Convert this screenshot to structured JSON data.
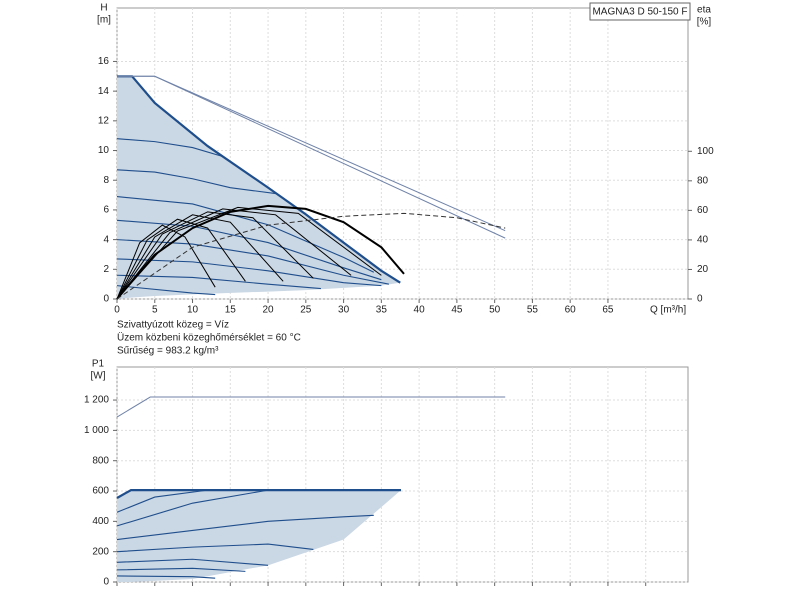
{
  "chart_data": [
    {
      "type": "line",
      "title": "MAGNA3 D 50-150 F",
      "ylabel": [
        "H",
        "[m]"
      ],
      "y2label": [
        "eta",
        "[%]"
      ],
      "xlabel": "Q [m³/h]",
      "annotations": [
        "Szivattyúzott közeg = Víz",
        "Üzem közbeni közeghőmérséklet = 60 °C",
        "Sűrűség = 983.2 kg/m³"
      ],
      "xlim": [
        0,
        75.6
      ],
      "ylim": [
        0,
        19.6
      ],
      "y2lim": [
        0,
        197
      ],
      "xticks": [
        0,
        5,
        10,
        15,
        20,
        25,
        30,
        35,
        40,
        45,
        50,
        55,
        60,
        65
      ],
      "yticks": [
        0,
        2,
        4,
        6,
        8,
        10,
        12,
        14,
        16
      ],
      "y2ticks": [
        0,
        20,
        40,
        60,
        80,
        100
      ],
      "grid": true,
      "show_xtick_labels": true,
      "series": [
        {
          "kind": "area",
          "fill": "#cad7e4",
          "color": "#1f4e8c",
          "width": 2.2,
          "x": [
            0,
            2,
            5,
            12,
            20,
            25,
            30,
            35,
            37.5
          ],
          "values": [
            15,
            15,
            13.2,
            10.3,
            7.5,
            5.7,
            3.8,
            1.9,
            1.1
          ],
          "lower": [
            0,
            0.1,
            0.2,
            0.35,
            0.5,
            0.6,
            0.75,
            0.9,
            1.1
          ]
        },
        {
          "kind": "line",
          "color": "#1f4e8c",
          "width": 1.1,
          "x": [
            0,
            5,
            10,
            14
          ],
          "values": [
            10.8,
            10.6,
            10.2,
            9.6
          ]
        },
        {
          "kind": "line",
          "color": "#1f4e8c",
          "width": 1.1,
          "x": [
            0,
            5,
            10,
            15,
            21
          ],
          "values": [
            8.7,
            8.55,
            8.1,
            7.5,
            7.1
          ]
        },
        {
          "kind": "line",
          "color": "#1f4e8c",
          "width": 1.1,
          "x": [
            0,
            10,
            20,
            30,
            34
          ],
          "values": [
            6.9,
            6.4,
            5.0,
            2.8,
            1.8
          ]
        },
        {
          "kind": "line",
          "color": "#1f4e8c",
          "width": 1.1,
          "x": [
            0,
            10,
            20,
            30,
            35
          ],
          "values": [
            5.3,
            4.9,
            3.8,
            2.1,
            1.3
          ]
        },
        {
          "kind": "line",
          "color": "#1f4e8c",
          "width": 1.1,
          "x": [
            0,
            10,
            20,
            30,
            36
          ],
          "values": [
            4.0,
            3.7,
            2.9,
            1.6,
            1.0
          ]
        },
        {
          "kind": "line",
          "color": "#1f4e8c",
          "width": 1.1,
          "x": [
            0,
            10,
            20,
            30,
            35
          ],
          "values": [
            2.7,
            2.5,
            1.9,
            1.1,
            0.9
          ]
        },
        {
          "kind": "line",
          "color": "#1f4e8c",
          "width": 1.1,
          "x": [
            0,
            10,
            20,
            27
          ],
          "values": [
            1.6,
            1.45,
            1.0,
            0.7
          ]
        },
        {
          "kind": "line",
          "color": "#1f4e8c",
          "width": 1.1,
          "x": [
            0,
            10,
            13
          ],
          "values": [
            0.9,
            0.4,
            0.3
          ]
        },
        {
          "kind": "line",
          "color": "#7083a8",
          "width": 1,
          "x": [
            0,
            5,
            51.4
          ],
          "values": [
            15,
            15,
            4.6
          ]
        },
        {
          "kind": "line",
          "color": "#7083a8",
          "width": 1,
          "x": [
            0,
            5,
            51.4
          ],
          "values": [
            15,
            15,
            4.1
          ]
        },
        {
          "kind": "line",
          "axis": "y2",
          "color": "#000000",
          "width": 2,
          "x": [
            0,
            5,
            10,
            15,
            20,
            25,
            30,
            35,
            38
          ],
          "values": [
            0,
            30,
            48,
            59,
            63,
            61,
            52,
            35,
            17
          ]
        },
        {
          "kind": "line",
          "axis": "y2",
          "color": "#000000",
          "width": 1,
          "x": [
            0,
            3,
            6,
            9,
            13
          ],
          "values": [
            0,
            38,
            50,
            42,
            8
          ]
        },
        {
          "kind": "line",
          "axis": "y2",
          "color": "#000000",
          "width": 1,
          "x": [
            0,
            4,
            8,
            12,
            17
          ],
          "values": [
            0,
            40,
            54,
            48,
            12
          ]
        },
        {
          "kind": "line",
          "axis": "y2",
          "color": "#000000",
          "width": 1,
          "x": [
            0,
            5,
            10,
            15,
            22
          ],
          "values": [
            0,
            42,
            57,
            52,
            12
          ]
        },
        {
          "kind": "line",
          "axis": "y2",
          "color": "#000000",
          "width": 1,
          "x": [
            0,
            6,
            12,
            18,
            26
          ],
          "values": [
            0,
            44,
            59,
            55,
            14
          ]
        },
        {
          "kind": "line",
          "axis": "y2",
          "color": "#000000",
          "width": 1,
          "x": [
            0,
            7,
            14,
            21,
            31
          ],
          "values": [
            0,
            45,
            61,
            57,
            16
          ]
        },
        {
          "kind": "line",
          "axis": "y2",
          "color": "#000000",
          "width": 1,
          "x": [
            0,
            8,
            16,
            24,
            35
          ],
          "values": [
            0,
            46,
            62,
            58,
            16
          ]
        },
        {
          "kind": "line",
          "axis": "y2",
          "color": "#333333",
          "width": 1,
          "dash": true,
          "x": [
            0,
            10,
            20,
            30,
            38,
            45,
            51.4
          ],
          "values": [
            0,
            35,
            50,
            56,
            58,
            55,
            48
          ]
        }
      ]
    },
    {
      "type": "line",
      "ylabel": [
        "P1",
        "[W]"
      ],
      "xlim": [
        0,
        75.6
      ],
      "ylim": [
        0,
        1418
      ],
      "xticks": [
        0,
        5,
        10,
        15,
        20,
        25,
        30,
        35,
        40,
        45,
        50,
        55,
        60,
        65,
        70
      ],
      "yticks": [
        0,
        200,
        400,
        600,
        800,
        {
          "value": 1000,
          "label": "1 000"
        },
        {
          "value": 1200,
          "label": "1 200"
        }
      ],
      "grid": true,
      "show_xtick_labels": false,
      "series": [
        {
          "kind": "area",
          "fill": "#cad7e4",
          "color": "#1f4e8c",
          "width": 2.2,
          "x": [
            0,
            1.85,
            10,
            20,
            30,
            37.6
          ],
          "values": [
            554,
            606,
            606,
            606,
            606,
            606
          ],
          "lower": [
            0,
            0,
            20,
            110,
            280,
            606
          ]
        },
        {
          "kind": "line",
          "color": "#1f4e8c",
          "width": 1.1,
          "x": [
            0,
            5,
            12
          ],
          "values": [
            460,
            560,
            606
          ]
        },
        {
          "kind": "line",
          "color": "#1f4e8c",
          "width": 1.1,
          "x": [
            0,
            10,
            20
          ],
          "values": [
            370,
            520,
            606
          ]
        },
        {
          "kind": "line",
          "color": "#1f4e8c",
          "width": 1.1,
          "x": [
            0,
            10,
            20,
            30,
            34
          ],
          "values": [
            280,
            340,
            400,
            430,
            440
          ]
        },
        {
          "kind": "line",
          "color": "#1f4e8c",
          "width": 1.1,
          "x": [
            0,
            10,
            20,
            26
          ],
          "values": [
            200,
            230,
            250,
            215
          ]
        },
        {
          "kind": "line",
          "color": "#1f4e8c",
          "width": 1.1,
          "x": [
            0,
            10,
            20
          ],
          "values": [
            130,
            150,
            110
          ]
        },
        {
          "kind": "line",
          "color": "#1f4e8c",
          "width": 1.1,
          "x": [
            0,
            10,
            17
          ],
          "values": [
            80,
            90,
            70
          ]
        },
        {
          "kind": "line",
          "color": "#1f4e8c",
          "width": 1.1,
          "x": [
            0,
            10,
            13
          ],
          "values": [
            40,
            35,
            25
          ]
        },
        {
          "kind": "line",
          "color": "#7083a8",
          "width": 1,
          "x": [
            0,
            4.4,
            51.4
          ],
          "values": [
            1088,
            1220,
            1220
          ]
        }
      ]
    }
  ]
}
